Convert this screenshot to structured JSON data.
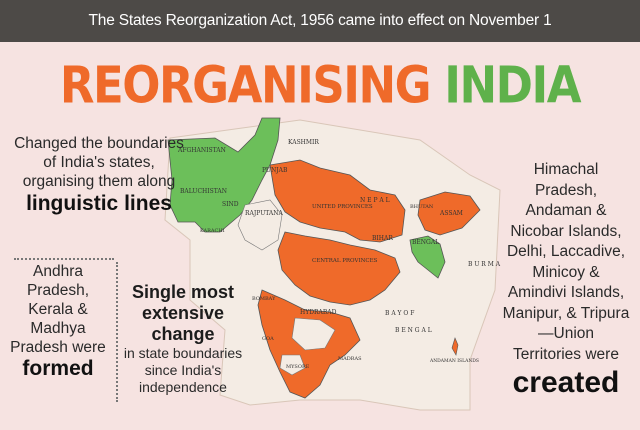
{
  "banner": {
    "text": "The States Reorganization Act, 1956 came into effect on November 1"
  },
  "title": {
    "part1": "REORGANISING",
    "part2": "INDIA"
  },
  "left_top": {
    "text": "Changed the boundaries of India's states, organising them along",
    "emphasis": "linguistic lines"
  },
  "left_bottom": {
    "text": "Andhra Pradesh, Kerala & Madhya Pradesh were",
    "emphasis": "formed"
  },
  "middle": {
    "heading": "Single most extensive change",
    "text": "in state boundaries since India's independence"
  },
  "right": {
    "text": "Himachal Pradesh, Andaman & Nicobar Islands, Delhi, Laccadive, Minicoy & Amindivi Islands, Manipur, & Tripura—Union Territories were",
    "emphasis": "created"
  },
  "map": {
    "labels": {
      "afghanistan": "AFGHANISTAN",
      "kashmir": "KASHMIR",
      "punjab": "PUNJAB",
      "baluchistan": "BALUCHISTAN",
      "sind": "SIND",
      "karachi": "KARACHI",
      "rajputana": "RAJPUTANA",
      "united_provinces": "UNITED PROVINCES",
      "nepal": "N E P A L",
      "bhutan": "BHUTAN",
      "assam": "ASSAM",
      "bihar": "BIHAR",
      "bengal": "BENGAL",
      "central_provinces": "CENTRAL PROVINCES",
      "burma": "B U R M A",
      "bombay": "BOMBAY",
      "hydrabad": "HYDRABAD",
      "bay_of_bengal": "B A Y   O F",
      "bengal_sea": "B E N G A L",
      "goa": "GOA",
      "mysore": "MYSORE",
      "madras": "MADRAS",
      "andaman": "ANDAMAN ISLANDS"
    },
    "colors": {
      "orange": "#ef6a2a",
      "green": "#6cbf5a",
      "paper": "#f4ece4",
      "line": "#7a6a5a"
    }
  }
}
